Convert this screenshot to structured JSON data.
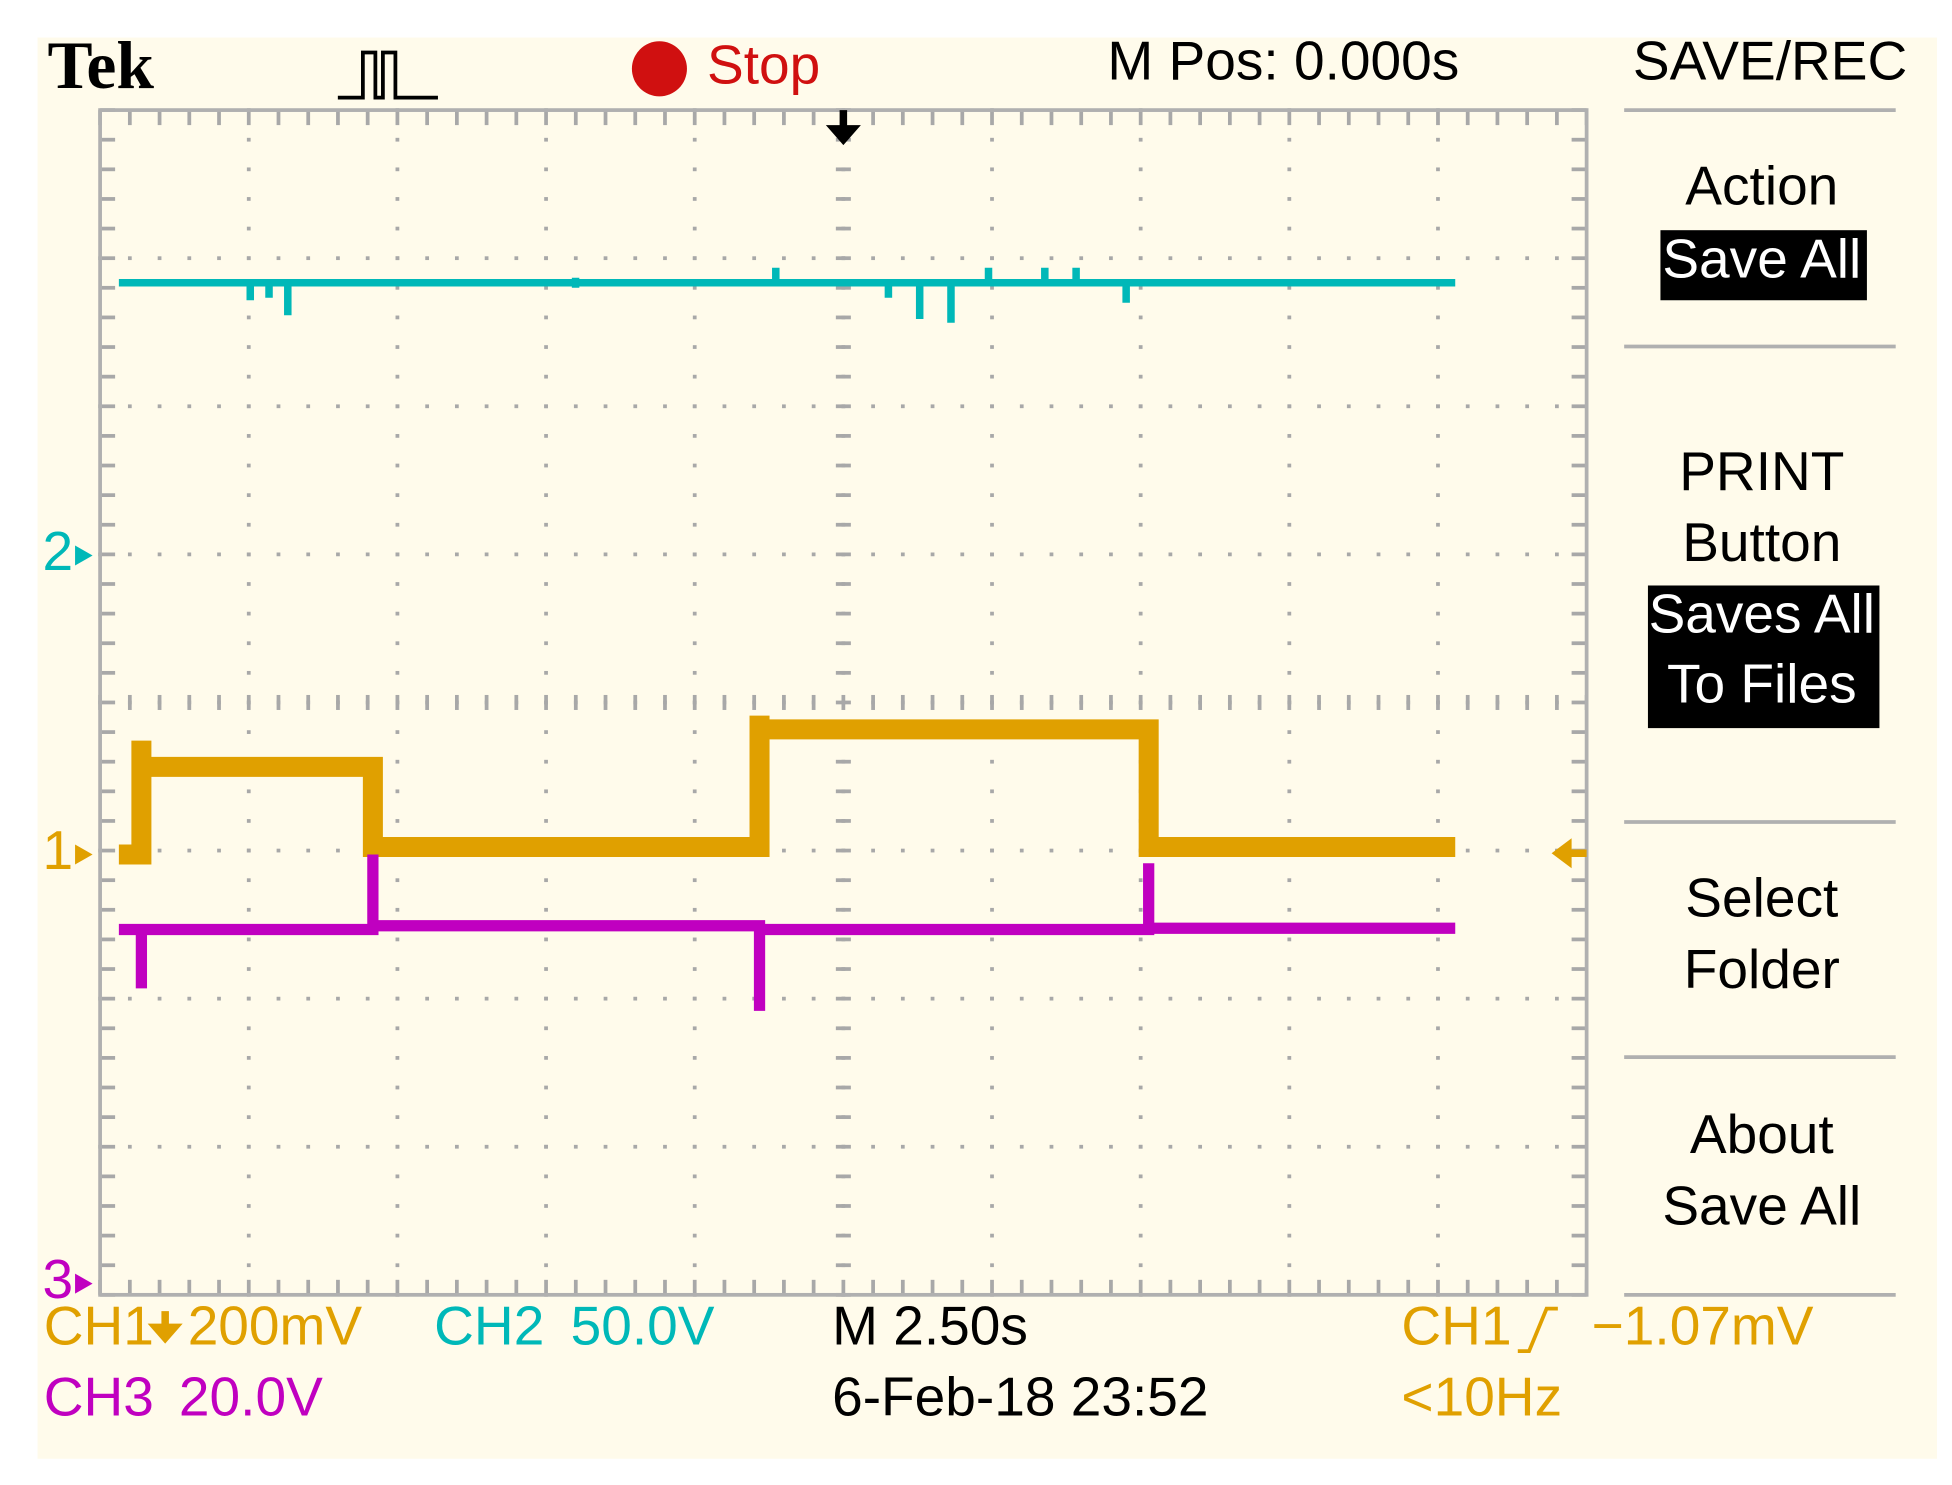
{
  "header": {
    "brand": "Tek",
    "status": "Stop",
    "position": "M Pos: 0.000s",
    "menu_title": "SAVE/REC"
  },
  "menu": {
    "items": [
      {
        "label": [
          "Action"
        ],
        "value": [
          "Save All"
        ]
      },
      {
        "label": [
          "PRINT",
          "Button"
        ],
        "value": [
          "Saves All",
          "To Files"
        ]
      },
      {
        "label": [
          "Select",
          "Folder"
        ],
        "value": []
      },
      {
        "label": [
          "About",
          "Save All"
        ],
        "value": []
      }
    ]
  },
  "markers": [
    "2",
    "1",
    "3"
  ],
  "footer": {
    "ch1": "CH1",
    "ch1_scale": "200mV",
    "ch2": "CH2",
    "ch2_scale": "50.0V",
    "ch3": "CH3",
    "ch3_scale": "20.0V",
    "timebase": "M 2.50s",
    "datetime": "6-Feb-18 23:52",
    "trigger_source": "CH1",
    "trigger_level": "−1.07mV",
    "trigger_freq": "<10Hz"
  }
}
